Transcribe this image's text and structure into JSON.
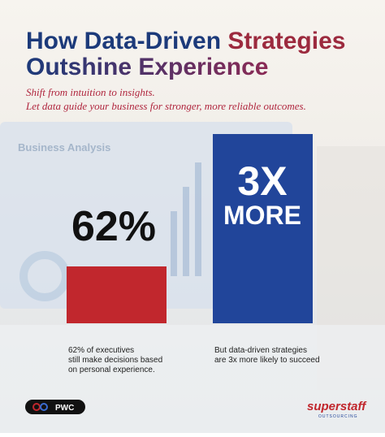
{
  "header": {
    "title_part1": "How Data-Driven",
    "title_part2": "Strategies",
    "title_part3": "Outshine Experience",
    "subtitle_line1": "Shift from intuition to insights.",
    "subtitle_line2": "Let data guide your business for stronger, more reliable outcomes."
  },
  "background_text": "Business Analysis",
  "stats": [
    {
      "big": "62%",
      "caption_lines": [
        "62% of executives",
        "still make decisions based",
        "on personal experience."
      ]
    },
    {
      "big": "3X",
      "big_sub": "MORE",
      "caption_lines": [
        "But data-driven strategies",
        "are 3x more likely to succeed"
      ]
    }
  ],
  "source": "PWC",
  "logo": {
    "name": "superstaff",
    "tagline": "OUTSOURCING"
  }
}
